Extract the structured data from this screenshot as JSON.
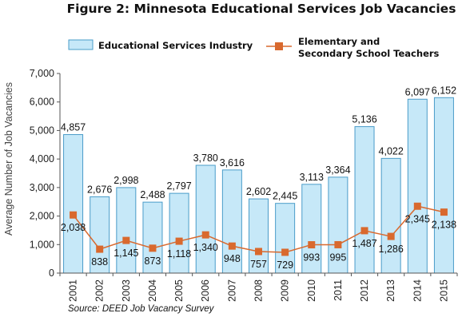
{
  "chart_data": {
    "type": "bar",
    "title": "Figure 2: Minnesota Educational Services Job Vacancies",
    "ylabel": "Average Number of Job Vacancies",
    "xlabel": "",
    "ylim": [
      0,
      7000
    ],
    "yticks": [
      0,
      1000,
      2000,
      3000,
      4000,
      5000,
      6000,
      7000
    ],
    "ytick_labels": [
      "0",
      "1,000",
      "2,000",
      "3,000",
      "4,000",
      "5,000",
      "6,000",
      "7,000"
    ],
    "categories": [
      "2001",
      "2002",
      "2003",
      "2004",
      "2005",
      "2006",
      "2007",
      "2008",
      "2009",
      "2010",
      "2011",
      "2012",
      "2013",
      "2014",
      "2015"
    ],
    "grid": false,
    "legend_position": "top",
    "source": "Source: DEED Job Vacancy Survey",
    "series": [
      {
        "name": "Educational Services Industry",
        "kind": "bar",
        "color": "#c6e8f8",
        "edge_color": "#4a9cc9",
        "values": [
          4857,
          2676,
          2998,
          2488,
          2797,
          3780,
          3616,
          2602,
          2445,
          3113,
          3364,
          5136,
          4022,
          6097,
          6152
        ],
        "labels": [
          "4,857",
          "2,676",
          "2,998",
          "2,488",
          "2,797",
          "3,780",
          "3,616",
          "2,602",
          "2,445",
          "3,113",
          "3,364",
          "5,136",
          "4,022",
          "6,097",
          "6,152"
        ]
      },
      {
        "name": "Elementary and Secondary School Teachers",
        "name_lines": [
          "Elementary and",
          "Secondary School Teachers"
        ],
        "kind": "line",
        "color": "#d9692e",
        "values": [
          2038,
          838,
          1145,
          873,
          1118,
          1340,
          948,
          757,
          729,
          993,
          995,
          1487,
          1286,
          2345,
          2138
        ],
        "labels": [
          "2,038",
          "838",
          "1,145",
          "873",
          "1,118",
          "1,340",
          "948",
          "757",
          "729",
          "993",
          "995",
          "1,487",
          "1,286",
          "2,345",
          "2,138"
        ]
      }
    ]
  }
}
